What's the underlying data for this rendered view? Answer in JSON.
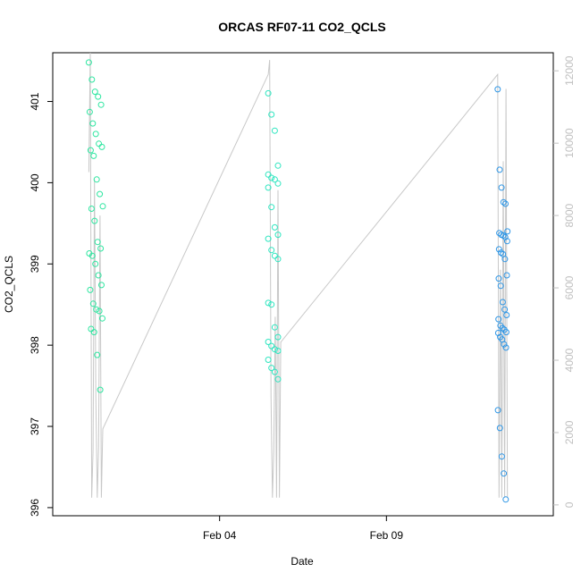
{
  "chart_data": {
    "type": "scatter",
    "title": "ORCAS RF07-11 CO2_QCLS",
    "xlabel": "Date",
    "ylabel": "CO2_QCLS",
    "xlim": [
      "2016-01-30",
      "2016-02-14"
    ],
    "ylim": [
      395.9,
      401.6
    ],
    "x_ticks": [
      {
        "date": "2016-02-04",
        "label": "Feb 04"
      },
      {
        "date": "2016-02-09",
        "label": "Feb 09"
      }
    ],
    "y_ticks": [
      396,
      397,
      398,
      399,
      400,
      401
    ],
    "secondary_axis": {
      "side": "right",
      "color": "#c0c0c0",
      "ylim": [
        -300,
        12500
      ],
      "ticks": [
        0,
        2000,
        4000,
        6000,
        8000,
        10000,
        12000
      ],
      "line_series": {
        "name": "",
        "color": "#c8c8c8",
        "points": [
          [
            "2016-01-31T02:00",
            9200
          ],
          [
            "2016-01-31T03:00",
            12500
          ],
          [
            "2016-01-31T04:00",
            200
          ],
          [
            "2016-01-31T05:00",
            1500
          ],
          [
            "2016-01-31T06:00",
            9000
          ],
          [
            "2016-01-31T07:00",
            3000
          ],
          [
            "2016-01-31T08:00",
            200
          ],
          [
            "2016-01-31T09:00",
            1600
          ],
          [
            "2016-01-31T10:00",
            8000
          ],
          [
            "2016-01-31T11:00",
            200
          ],
          [
            "2016-01-31T12:00",
            2100
          ],
          [
            "2016-02-05T11:00",
            11900
          ],
          [
            "2016-02-05T12:00",
            12300
          ],
          [
            "2016-02-05T13:00",
            3000
          ],
          [
            "2016-02-05T14:00",
            200
          ],
          [
            "2016-02-05T15:00",
            1500
          ],
          [
            "2016-02-05T16:00",
            5200
          ],
          [
            "2016-02-05T17:00",
            200
          ],
          [
            "2016-02-05T18:00",
            8700
          ],
          [
            "2016-02-05T19:00",
            200
          ],
          [
            "2016-02-05T20:00",
            4500
          ],
          [
            "2016-02-12T08:00",
            11900
          ],
          [
            "2016-02-12T09:00",
            200
          ],
          [
            "2016-02-12T10:00",
            6500
          ],
          [
            "2016-02-12T11:00",
            200
          ],
          [
            "2016-02-12T12:00",
            9500
          ],
          [
            "2016-02-12T13:00",
            200
          ],
          [
            "2016-02-12T14:00",
            11500
          ],
          [
            "2016-02-12T15:00",
            200
          ]
        ]
      }
    },
    "series": [
      {
        "name": "",
        "color": "#2ee6a0",
        "x_start": "2016-01-31T02:00",
        "x_end": "2016-01-31T12:00",
        "values": [
          401.48,
          401.27,
          401.12,
          401.06,
          400.96,
          400.87,
          400.73,
          400.6,
          400.48,
          400.44,
          400.4,
          400.33,
          400.04,
          399.86,
          399.71,
          399.68,
          399.53,
          399.27,
          399.19,
          399.13,
          399.1,
          399.0,
          398.86,
          398.74,
          398.68,
          398.51,
          398.44,
          398.42,
          398.33,
          398.2,
          398.16,
          397.88,
          397.45
        ]
      },
      {
        "name": "",
        "color": "#2ee6c0",
        "x_start": "2016-02-05T11:00",
        "x_end": "2016-02-05T20:00",
        "values": [
          401.1,
          400.84,
          400.64,
          400.21,
          400.1,
          400.06,
          400.04,
          399.99,
          399.94,
          399.7,
          399.45,
          399.36,
          399.31,
          399.17,
          399.1,
          399.06,
          398.52,
          398.5,
          398.22,
          398.1,
          398.04,
          397.99,
          397.95,
          397.93,
          397.82,
          397.72,
          397.67,
          397.58
        ]
      },
      {
        "name": "",
        "color": "#2e96e6",
        "x_start": "2016-02-12T08:00",
        "x_end": "2016-02-12T15:00",
        "values": [
          401.15,
          400.16,
          399.94,
          399.76,
          399.74,
          399.4,
          399.38,
          399.36,
          399.35,
          399.33,
          399.28,
          399.18,
          399.14,
          399.12,
          399.06,
          398.86,
          398.82,
          398.73,
          398.53,
          398.44,
          398.37,
          398.32,
          398.24,
          398.21,
          398.19,
          398.16,
          398.15,
          398.1,
          398.07,
          398.01,
          397.97,
          397.2,
          396.98,
          396.63,
          396.42,
          396.1
        ]
      }
    ],
    "grid": false,
    "legend": "none"
  }
}
